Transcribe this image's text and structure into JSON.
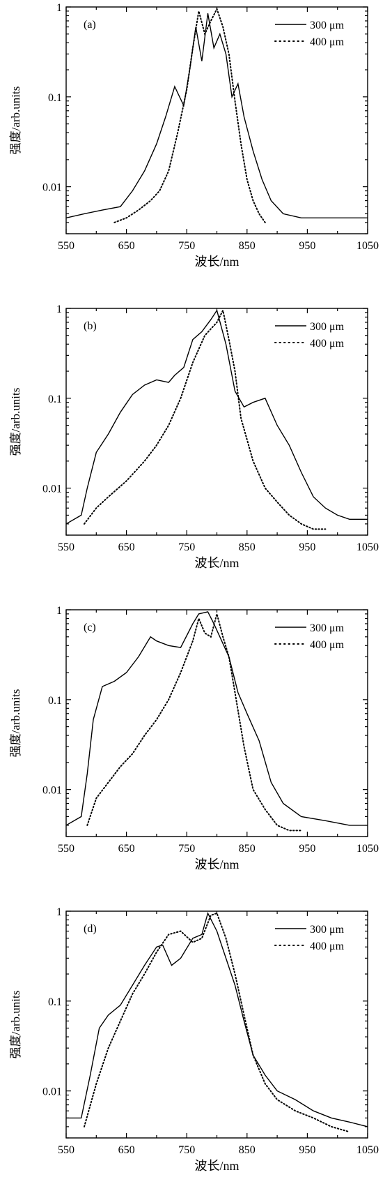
{
  "chart_data": [
    {
      "type": "line",
      "panel_label": "(a)",
      "xlabel": "波长/nm",
      "ylabel": "强度/arb.units",
      "xlim": [
        550,
        1050
      ],
      "ylim": [
        0.003,
        1
      ],
      "y_scale": "log",
      "x_ticks": [
        "550",
        "650",
        "750",
        "850",
        "950",
        "1050"
      ],
      "y_ticks": [
        "1",
        "0.1",
        "0.01"
      ],
      "legend_position": "top-right",
      "series": [
        {
          "name": "300 μm",
          "style": "solid",
          "x": [
            550,
            580,
            610,
            640,
            660,
            680,
            700,
            715,
            730,
            745,
            755,
            765,
            775,
            785,
            795,
            805,
            815,
            825,
            835,
            845,
            860,
            875,
            890,
            910,
            940,
            980,
            1020,
            1050
          ],
          "y": [
            0.0045,
            0.005,
            0.0055,
            0.006,
            0.009,
            0.015,
            0.03,
            0.06,
            0.13,
            0.08,
            0.2,
            0.6,
            0.25,
            0.85,
            0.35,
            0.5,
            0.3,
            0.1,
            0.14,
            0.06,
            0.025,
            0.012,
            0.007,
            0.005,
            0.0045,
            0.0045,
            0.0045,
            0.0045
          ]
        },
        {
          "name": "400 μm",
          "style": "dotted",
          "x": [
            630,
            650,
            670,
            690,
            705,
            720,
            735,
            750,
            760,
            770,
            780,
            790,
            800,
            810,
            820,
            830,
            840,
            850,
            860,
            870,
            880
          ],
          "y": [
            0.004,
            0.0045,
            0.0055,
            0.007,
            0.009,
            0.015,
            0.04,
            0.12,
            0.35,
            0.9,
            0.5,
            0.7,
            0.95,
            0.6,
            0.3,
            0.09,
            0.03,
            0.012,
            0.007,
            0.005,
            0.004
          ]
        }
      ]
    },
    {
      "type": "line",
      "panel_label": "(b)",
      "xlabel": "波长/nm",
      "ylabel": "强度/arb.units",
      "xlim": [
        550,
        1050
      ],
      "ylim": [
        0.003,
        1
      ],
      "y_scale": "log",
      "x_ticks": [
        "550",
        "650",
        "750",
        "850",
        "950",
        "1050"
      ],
      "y_ticks": [
        "1",
        "0.1",
        "0.01"
      ],
      "legend_position": "top-right",
      "series": [
        {
          "name": "300 μm",
          "style": "solid",
          "x": [
            550,
            575,
            585,
            600,
            620,
            640,
            660,
            680,
            700,
            720,
            730,
            745,
            760,
            775,
            790,
            800,
            815,
            830,
            845,
            860,
            880,
            900,
            920,
            940,
            960,
            980,
            1000,
            1020,
            1050
          ],
          "y": [
            0.004,
            0.005,
            0.01,
            0.025,
            0.04,
            0.07,
            0.11,
            0.14,
            0.16,
            0.15,
            0.18,
            0.22,
            0.45,
            0.55,
            0.75,
            0.95,
            0.4,
            0.12,
            0.08,
            0.09,
            0.1,
            0.05,
            0.03,
            0.015,
            0.008,
            0.006,
            0.005,
            0.0045,
            0.0045
          ]
        },
        {
          "name": "400 μm",
          "style": "dotted",
          "x": [
            580,
            600,
            620,
            650,
            680,
            700,
            720,
            740,
            760,
            780,
            800,
            810,
            820,
            830,
            840,
            860,
            880,
            900,
            920,
            940,
            960,
            980
          ],
          "y": [
            0.004,
            0.006,
            0.008,
            0.012,
            0.02,
            0.03,
            0.05,
            0.1,
            0.25,
            0.5,
            0.7,
            0.95,
            0.45,
            0.2,
            0.06,
            0.02,
            0.01,
            0.007,
            0.005,
            0.004,
            0.0035,
            0.0035
          ]
        }
      ]
    },
    {
      "type": "line",
      "panel_label": "(c)",
      "xlabel": "波长/nm",
      "ylabel": "强度/arb.units",
      "xlim": [
        550,
        1050
      ],
      "ylim": [
        0.003,
        1
      ],
      "y_scale": "log",
      "x_ticks": [
        "550",
        "650",
        "750",
        "850",
        "950",
        "1050"
      ],
      "y_ticks": [
        "1",
        "0.1",
        "0.01"
      ],
      "legend_position": "top-right",
      "series": [
        {
          "name": "300 μm",
          "style": "solid",
          "x": [
            550,
            575,
            585,
            595,
            610,
            630,
            650,
            670,
            690,
            700,
            720,
            740,
            760,
            770,
            785,
            795,
            805,
            820,
            835,
            850,
            870,
            890,
            910,
            940,
            980,
            1020,
            1050
          ],
          "y": [
            0.004,
            0.005,
            0.015,
            0.06,
            0.14,
            0.16,
            0.2,
            0.3,
            0.5,
            0.45,
            0.4,
            0.38,
            0.7,
            0.9,
            0.95,
            0.7,
            0.5,
            0.3,
            0.12,
            0.07,
            0.035,
            0.012,
            0.007,
            0.005,
            0.0045,
            0.004,
            0.004
          ]
        },
        {
          "name": "400 μm",
          "style": "dotted",
          "x": [
            585,
            600,
            620,
            640,
            660,
            680,
            700,
            720,
            740,
            760,
            770,
            780,
            790,
            800,
            810,
            820,
            830,
            845,
            860,
            880,
            900,
            920,
            940
          ],
          "y": [
            0.004,
            0.008,
            0.012,
            0.018,
            0.025,
            0.04,
            0.06,
            0.1,
            0.2,
            0.45,
            0.8,
            0.55,
            0.5,
            0.9,
            0.5,
            0.3,
            0.12,
            0.03,
            0.01,
            0.006,
            0.004,
            0.0035,
            0.0035
          ]
        }
      ]
    },
    {
      "type": "line",
      "panel_label": "(d)",
      "xlabel": "波长/nm",
      "ylabel": "强度/arb.units",
      "xlim": [
        550,
        1050
      ],
      "ylim": [
        0.003,
        1
      ],
      "y_scale": "log",
      "x_ticks": [
        "550",
        "650",
        "750",
        "850",
        "950",
        "1050"
      ],
      "y_ticks": [
        "1",
        "0.1",
        "0.01"
      ],
      "legend_position": "top-right",
      "series": [
        {
          "name": "300 μm",
          "style": "solid",
          "x": [
            550,
            575,
            590,
            605,
            620,
            640,
            660,
            680,
            700,
            710,
            725,
            740,
            760,
            775,
            785,
            800,
            815,
            830,
            845,
            860,
            880,
            900,
            930,
            960,
            990,
            1020,
            1050
          ],
          "y": [
            0.005,
            0.005,
            0.015,
            0.05,
            0.07,
            0.09,
            0.15,
            0.25,
            0.4,
            0.42,
            0.25,
            0.3,
            0.5,
            0.55,
            0.95,
            0.6,
            0.3,
            0.15,
            0.06,
            0.025,
            0.015,
            0.01,
            0.008,
            0.006,
            0.005,
            0.0045,
            0.004
          ]
        },
        {
          "name": "400 μm",
          "style": "dotted",
          "x": [
            580,
            600,
            620,
            640,
            660,
            680,
            700,
            720,
            740,
            760,
            775,
            790,
            800,
            815,
            830,
            845,
            860,
            880,
            900,
            930,
            960,
            990,
            1020
          ],
          "y": [
            0.004,
            0.012,
            0.03,
            0.06,
            0.12,
            0.2,
            0.35,
            0.55,
            0.6,
            0.45,
            0.5,
            0.9,
            0.95,
            0.5,
            0.2,
            0.07,
            0.025,
            0.012,
            0.008,
            0.006,
            0.005,
            0.004,
            0.0035
          ]
        }
      ]
    }
  ]
}
